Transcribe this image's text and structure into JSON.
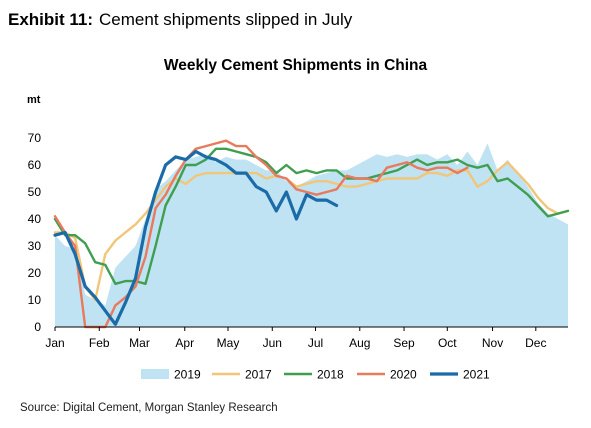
{
  "header": {
    "exhibit_label": "Exhibit 11:",
    "headline": "Cement shipments slipped in July"
  },
  "footer": {
    "source": "Source: Digital Cement, Morgan Stanley Research"
  },
  "colors": {
    "2019": "#bfe3f3",
    "2017": "#f2c679",
    "2018": "#3f9e50",
    "2020": "#e87a5d",
    "2021": "#1b6ba8",
    "axis": "#000000"
  },
  "chart_data": {
    "type": "line",
    "title": "Weekly Cement Shipments in China",
    "ylabel": "mt",
    "xlabel": "",
    "x_unit": "week",
    "xlim": [
      1,
      52
    ],
    "ylim": [
      0,
      70
    ],
    "yticks": [
      0,
      10,
      20,
      30,
      40,
      50,
      60,
      70
    ],
    "month_ticks": [
      {
        "label": "Jan",
        "week": 1
      },
      {
        "label": "Feb",
        "week": 5.4
      },
      {
        "label": "Mar",
        "week": 9.4
      },
      {
        "label": "Apr",
        "week": 13.9
      },
      {
        "label": "May",
        "week": 18.2
      },
      {
        "label": "Jun",
        "week": 22.6
      },
      {
        "label": "Jul",
        "week": 26.9
      },
      {
        "label": "Aug",
        "week": 31.3
      },
      {
        "label": "Sep",
        "week": 35.7
      },
      {
        "label": "Oct",
        "week": 40.0
      },
      {
        "label": "Nov",
        "week": 44.5
      },
      {
        "label": "Dec",
        "week": 48.8
      }
    ],
    "grid": false,
    "legend_position": "bottom",
    "series": [
      {
        "name": "2019",
        "style": "area",
        "values": [
          [
            1,
            34
          ],
          [
            2,
            30
          ],
          [
            3,
            29
          ],
          [
            4,
            12
          ],
          [
            5,
            10
          ],
          [
            6,
            8
          ],
          [
            7,
            22
          ],
          [
            8,
            26
          ],
          [
            9,
            30
          ],
          [
            10,
            40
          ],
          [
            11,
            51
          ],
          [
            12,
            54
          ],
          [
            13,
            58
          ],
          [
            14,
            62
          ],
          [
            15,
            63
          ],
          [
            16,
            64
          ],
          [
            17,
            61
          ],
          [
            18,
            63
          ],
          [
            19,
            62
          ],
          [
            20,
            62
          ],
          [
            21,
            60
          ],
          [
            22,
            58
          ],
          [
            23,
            58
          ],
          [
            24,
            54
          ],
          [
            25,
            52
          ],
          [
            26,
            54
          ],
          [
            27,
            56
          ],
          [
            28,
            57
          ],
          [
            29,
            58
          ],
          [
            30,
            58
          ],
          [
            31,
            60
          ],
          [
            32,
            62
          ],
          [
            33,
            64
          ],
          [
            34,
            63
          ],
          [
            35,
            64
          ],
          [
            36,
            63
          ],
          [
            37,
            64
          ],
          [
            38,
            64
          ],
          [
            39,
            62
          ],
          [
            40,
            64
          ],
          [
            41,
            60
          ],
          [
            42,
            65
          ],
          [
            43,
            60
          ],
          [
            44,
            68
          ],
          [
            45,
            58
          ],
          [
            46,
            62
          ],
          [
            47,
            57
          ],
          [
            48,
            52
          ],
          [
            49,
            46
          ],
          [
            50,
            42
          ],
          [
            51,
            40
          ],
          [
            52,
            38
          ]
        ]
      },
      {
        "name": "2017",
        "style": "line",
        "values": [
          [
            1,
            35
          ],
          [
            2,
            35
          ],
          [
            3,
            33
          ],
          [
            4,
            15
          ],
          [
            5,
            10
          ],
          [
            6,
            27
          ],
          [
            7,
            32
          ],
          [
            8,
            35
          ],
          [
            9,
            38
          ],
          [
            10,
            42
          ],
          [
            11,
            47
          ],
          [
            12,
            52
          ],
          [
            13,
            55
          ],
          [
            14,
            53
          ],
          [
            15,
            56
          ],
          [
            16,
            57
          ],
          [
            17,
            57
          ],
          [
            18,
            57
          ],
          [
            19,
            57
          ],
          [
            20,
            57
          ],
          [
            21,
            57
          ],
          [
            22,
            55
          ],
          [
            23,
            56
          ],
          [
            24,
            55
          ],
          [
            25,
            52
          ],
          [
            26,
            53
          ],
          [
            27,
            54
          ],
          [
            28,
            54
          ],
          [
            29,
            53
          ],
          [
            30,
            52
          ],
          [
            31,
            52
          ],
          [
            32,
            53
          ],
          [
            33,
            54
          ],
          [
            34,
            55
          ],
          [
            35,
            55
          ],
          [
            36,
            55
          ],
          [
            37,
            55
          ],
          [
            38,
            57
          ],
          [
            39,
            57
          ],
          [
            40,
            56
          ],
          [
            41,
            58
          ],
          [
            42,
            58
          ],
          [
            43,
            52
          ],
          [
            44,
            54
          ],
          [
            45,
            58
          ],
          [
            46,
            61
          ],
          [
            47,
            57
          ],
          [
            48,
            53
          ],
          [
            49,
            48
          ],
          [
            50,
            44
          ],
          [
            51,
            42
          ],
          [
            52,
            43
          ]
        ]
      },
      {
        "name": "2018",
        "style": "line",
        "values": [
          [
            1,
            40
          ],
          [
            2,
            34
          ],
          [
            3,
            34
          ],
          [
            4,
            31
          ],
          [
            5,
            24
          ],
          [
            6,
            23
          ],
          [
            7,
            16
          ],
          [
            8,
            17
          ],
          [
            9,
            17
          ],
          [
            10,
            16
          ],
          [
            11,
            30
          ],
          [
            12,
            45
          ],
          [
            13,
            52
          ],
          [
            14,
            60
          ],
          [
            15,
            60
          ],
          [
            16,
            62
          ],
          [
            17,
            66
          ],
          [
            18,
            66
          ],
          [
            19,
            65
          ],
          [
            20,
            64
          ],
          [
            21,
            63
          ],
          [
            22,
            61
          ],
          [
            23,
            57
          ],
          [
            24,
            60
          ],
          [
            25,
            57
          ],
          [
            26,
            58
          ],
          [
            27,
            57
          ],
          [
            28,
            58
          ],
          [
            29,
            58
          ],
          [
            30,
            55
          ],
          [
            31,
            55
          ],
          [
            32,
            55
          ],
          [
            33,
            56
          ],
          [
            34,
            57
          ],
          [
            35,
            58
          ],
          [
            36,
            60
          ],
          [
            37,
            62
          ],
          [
            38,
            60
          ],
          [
            39,
            61
          ],
          [
            40,
            61
          ],
          [
            41,
            62
          ],
          [
            42,
            60
          ],
          [
            43,
            59
          ],
          [
            44,
            60
          ],
          [
            45,
            54
          ],
          [
            46,
            55
          ],
          [
            47,
            52
          ],
          [
            48,
            49
          ],
          [
            49,
            45
          ],
          [
            50,
            41
          ],
          [
            51,
            42
          ],
          [
            52,
            43
          ]
        ]
      },
      {
        "name": "2020",
        "style": "line",
        "values": [
          [
            1,
            41
          ],
          [
            2,
            35
          ],
          [
            3,
            30
          ],
          [
            4,
            0
          ],
          [
            5,
            0
          ],
          [
            6,
            0
          ],
          [
            7,
            8
          ],
          [
            8,
            11
          ],
          [
            9,
            15
          ],
          [
            10,
            26
          ],
          [
            11,
            44
          ],
          [
            12,
            49
          ],
          [
            13,
            56
          ],
          [
            14,
            62
          ],
          [
            15,
            66
          ],
          [
            16,
            67
          ],
          [
            17,
            68
          ],
          [
            18,
            69
          ],
          [
            19,
            67
          ],
          [
            20,
            67
          ],
          [
            21,
            63
          ],
          [
            22,
            60
          ],
          [
            23,
            56
          ],
          [
            24,
            55
          ],
          [
            25,
            51
          ],
          [
            26,
            50
          ],
          [
            27,
            49
          ],
          [
            28,
            50
          ],
          [
            29,
            51
          ],
          [
            30,
            56
          ],
          [
            31,
            55
          ],
          [
            32,
            55
          ],
          [
            33,
            54
          ],
          [
            34,
            59
          ],
          [
            35,
            60
          ],
          [
            36,
            61
          ],
          [
            37,
            59
          ],
          [
            38,
            58
          ],
          [
            39,
            59
          ],
          [
            40,
            59
          ],
          [
            41,
            57
          ],
          [
            42,
            59
          ]
        ]
      },
      {
        "name": "2021",
        "style": "line",
        "values": [
          [
            1,
            34
          ],
          [
            2,
            35
          ],
          [
            3,
            27
          ],
          [
            4,
            15
          ],
          [
            5,
            11
          ],
          [
            6,
            6
          ],
          [
            7,
            1
          ],
          [
            8,
            9
          ],
          [
            9,
            18
          ],
          [
            10,
            37
          ],
          [
            11,
            50
          ],
          [
            12,
            60
          ],
          [
            13,
            63
          ],
          [
            14,
            62
          ],
          [
            15,
            65
          ],
          [
            16,
            63
          ],
          [
            17,
            62
          ],
          [
            18,
            60
          ],
          [
            19,
            57
          ],
          [
            20,
            57
          ],
          [
            21,
            52
          ],
          [
            22,
            50
          ],
          [
            23,
            43
          ],
          [
            24,
            50
          ],
          [
            25,
            40
          ],
          [
            26,
            49
          ],
          [
            27,
            47
          ],
          [
            28,
            47
          ],
          [
            29,
            45
          ]
        ]
      }
    ]
  }
}
